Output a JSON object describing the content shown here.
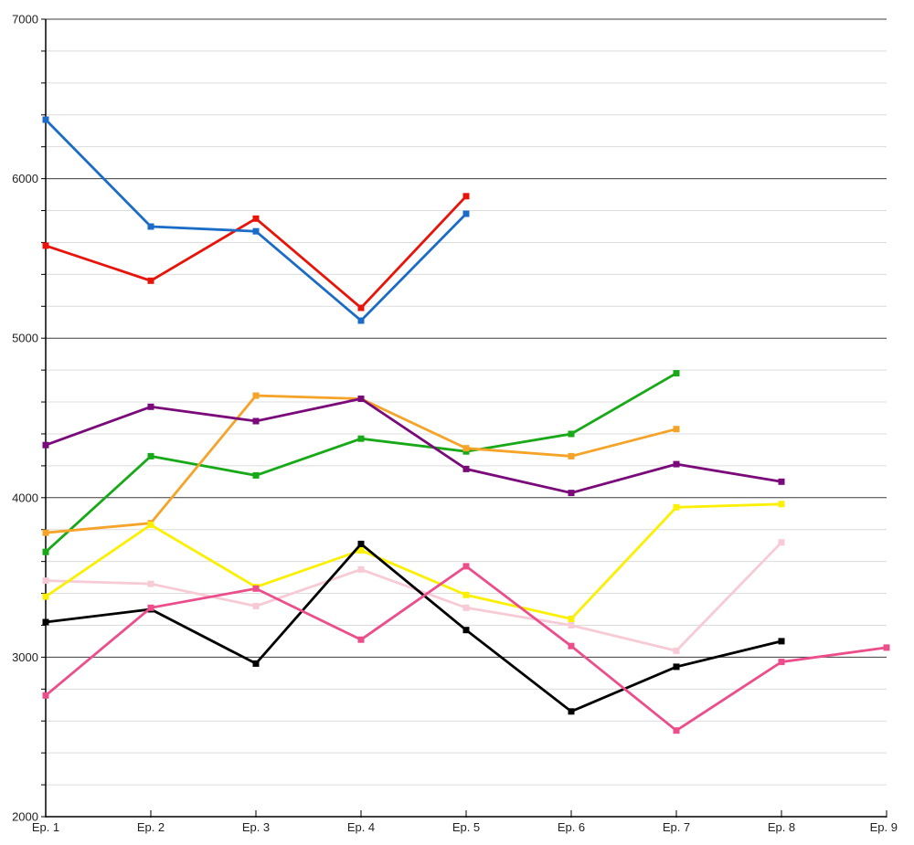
{
  "page": {
    "background_color": "#ffffff"
  },
  "chart_data": {
    "type": "line",
    "title": "",
    "xlabel": "",
    "ylabel": "",
    "legend": "none",
    "grid": {
      "show": true,
      "major_color": "#3c3c3c",
      "minor_color": "#dcdcdc",
      "minor_step": 200,
      "major_step": 1000
    },
    "x_axis": {
      "tick_labels": [
        "Ep. 1",
        "Ep. 2",
        "Ep. 3",
        "Ep. 4",
        "Ep. 5",
        "Ep. 6",
        "Ep. 7",
        "Ep. 8",
        "Ep. 9"
      ]
    },
    "y_axis": {
      "min": 2000,
      "max": 7000,
      "tick_labels": [
        "2000",
        "3000",
        "4000",
        "5000",
        "6000",
        "7000"
      ]
    },
    "categories": [
      "Ep. 1",
      "Ep. 2",
      "Ep. 3",
      "Ep. 4",
      "Ep. 5",
      "Ep. 6",
      "Ep. 7",
      "Ep. 8",
      "Ep. 9"
    ],
    "series": [
      {
        "name": "light-pink",
        "color": "#f7cbd6",
        "values": [
          3480,
          3460,
          3320,
          3550,
          3310,
          3200,
          3040,
          3720,
          null
        ]
      },
      {
        "name": "green",
        "color": "#17a917",
        "values": [
          3660,
          4260,
          4140,
          4370,
          4290,
          4400,
          4780,
          null,
          null
        ]
      },
      {
        "name": "orange",
        "color": "#f5a329",
        "values": [
          3780,
          3840,
          4640,
          4620,
          4310,
          4260,
          4430,
          null,
          null
        ]
      },
      {
        "name": "yellow",
        "color": "#fbf002",
        "values": [
          3380,
          3830,
          3440,
          3670,
          3390,
          3240,
          3940,
          3960,
          null
        ]
      },
      {
        "name": "purple",
        "color": "#7a0a7a",
        "values": [
          4330,
          4570,
          4480,
          4620,
          4180,
          4030,
          4210,
          4100,
          null
        ]
      },
      {
        "name": "red",
        "color": "#e81309",
        "values": [
          5580,
          5360,
          5750,
          5190,
          5890,
          null,
          null,
          null,
          null
        ]
      },
      {
        "name": "blue",
        "color": "#1b6cc6",
        "values": [
          6370,
          5700,
          5670,
          5110,
          5780,
          null,
          null,
          null,
          null
        ]
      },
      {
        "name": "black",
        "color": "#000000",
        "values": [
          3220,
          3300,
          2960,
          3710,
          3170,
          2660,
          2940,
          3100,
          null
        ]
      },
      {
        "name": "pink",
        "color": "#ec4d8b",
        "values": [
          2760,
          3310,
          3430,
          3110,
          3570,
          3070,
          2540,
          2970,
          3060
        ]
      }
    ]
  }
}
